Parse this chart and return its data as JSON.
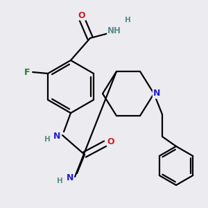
{
  "background_color": "#ebebf0",
  "atom_colors": {
    "C": "#000000",
    "N": "#2020cc",
    "O": "#cc2020",
    "F": "#208020",
    "H": "#5a8a8a"
  },
  "bond_color": "#000000",
  "bond_width": 1.6,
  "figsize": [
    3.0,
    3.0
  ],
  "dpi": 100
}
